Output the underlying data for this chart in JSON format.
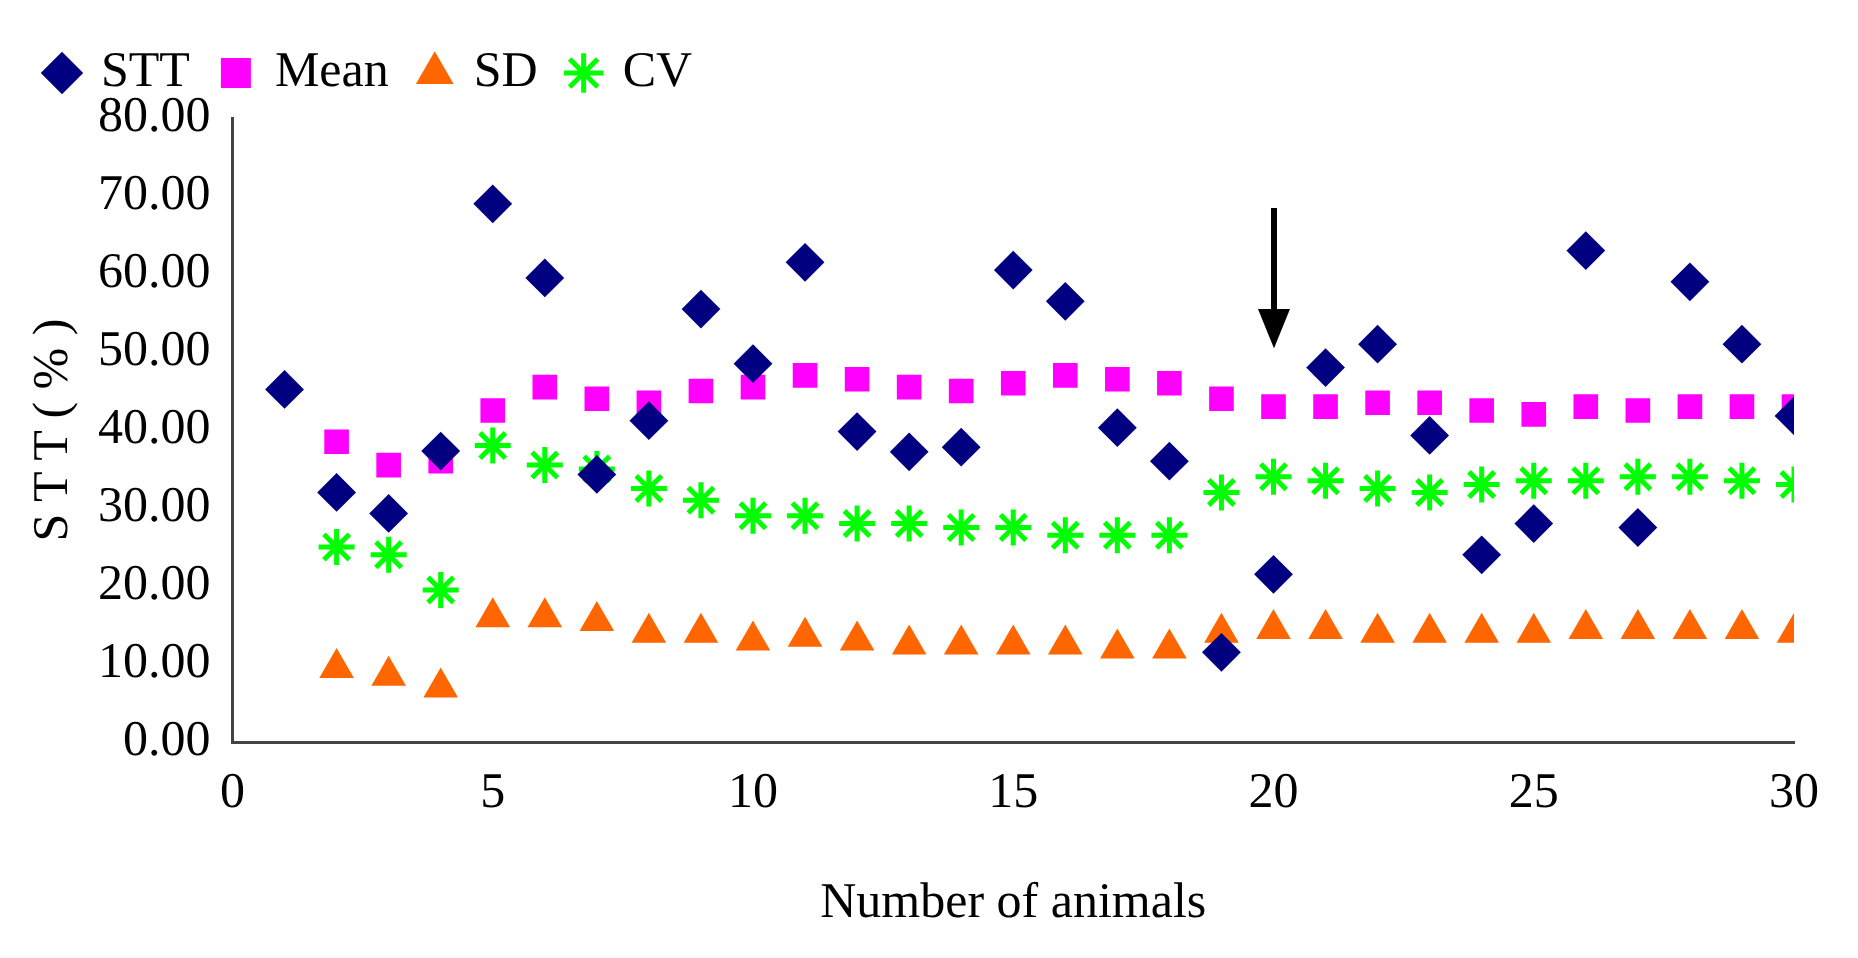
{
  "chart_data": {
    "type": "scatter",
    "xlabel": "Number of animals",
    "ylabel": "S T T ( % )",
    "xlim": [
      0,
      30
    ],
    "xticks": [
      0,
      5,
      10,
      15,
      20,
      25,
      30
    ],
    "ylim": [
      0,
      80
    ],
    "yticks": [
      {
        "value": 0,
        "label": "0.00"
      },
      {
        "value": 10,
        "label": "10.00"
      },
      {
        "value": 20,
        "label": "20.00"
      },
      {
        "value": 30,
        "label": "30.00"
      },
      {
        "value": 40,
        "label": "40.00"
      },
      {
        "value": 50,
        "label": "50.00"
      },
      {
        "value": 60,
        "label": "60.00"
      },
      {
        "value": 70,
        "label": "70.00"
      },
      {
        "value": 80,
        "label": "80.00"
      }
    ],
    "grid": false,
    "legend": "top",
    "x": [
      1,
      2,
      3,
      4,
      5,
      6,
      7,
      8,
      9,
      10,
      11,
      12,
      13,
      14,
      15,
      16,
      17,
      18,
      19,
      20,
      21,
      22,
      23,
      24,
      25,
      26,
      27,
      28,
      29,
      30
    ],
    "series": [
      {
        "name": "STT",
        "color": "#000080",
        "marker": "diamond",
        "values": [
          45.2,
          32,
          29.3,
          37.3,
          69,
          59.5,
          34.3,
          41.2,
          55.5,
          48.5,
          61.5,
          39.8,
          37.2,
          37.8,
          60.5,
          56.5,
          40.3,
          36,
          11.5,
          21.5,
          48,
          51,
          39.3,
          24,
          28,
          63,
          27.5,
          59,
          51,
          41.8
        ]
      },
      {
        "name": "Mean",
        "color": "#ff00ff",
        "marker": "square",
        "values": [
          null,
          38.5,
          35.5,
          36,
          42.5,
          45.5,
          44,
          43.5,
          45,
          45.5,
          47,
          46.5,
          45.5,
          45,
          46,
          47,
          46.5,
          46,
          44,
          43,
          43,
          43.5,
          43.5,
          42.5,
          42,
          43,
          42.5,
          43,
          43,
          43
        ]
      },
      {
        "name": "SD",
        "color": "#ff6600",
        "marker": "triangle",
        "values": [
          null,
          9.5,
          8.5,
          7,
          16,
          16,
          15.5,
          14,
          14,
          13,
          13.5,
          13,
          12.5,
          12.5,
          12.5,
          12.5,
          12,
          12,
          14,
          14.5,
          14.5,
          14,
          14,
          14,
          14,
          14.5,
          14.5,
          14.5,
          14.5,
          14
        ]
      },
      {
        "name": "CV",
        "color": "#00ff00",
        "marker": "cross",
        "values": [
          null,
          25,
          24,
          19.5,
          38,
          35.5,
          35,
          32.5,
          31,
          29,
          29,
          28,
          28,
          27.5,
          27.5,
          26.5,
          26.5,
          26.5,
          32,
          34,
          33.5,
          32.5,
          32,
          33,
          33.5,
          33.5,
          34,
          34,
          33.5,
          33
        ]
      }
    ]
  }
}
